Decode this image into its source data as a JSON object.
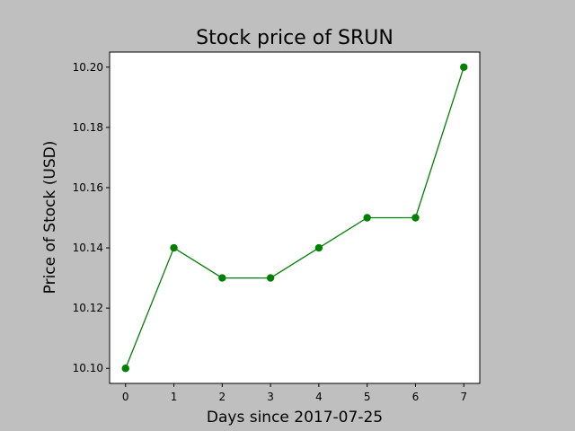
{
  "chart_data": {
    "type": "line",
    "title": "Stock price of SRUN",
    "xlabel": "Days since 2017-07-25",
    "ylabel": "Price of Stock (USD)",
    "x": [
      0,
      1,
      2,
      3,
      4,
      5,
      6,
      7
    ],
    "values": [
      10.1,
      10.14,
      10.13,
      10.13,
      10.14,
      10.15,
      10.15,
      10.2
    ],
    "xticks": [
      0,
      1,
      2,
      3,
      4,
      5,
      6,
      7
    ],
    "xtick_labels": [
      "0",
      "1",
      "2",
      "3",
      "4",
      "5",
      "6",
      "7"
    ],
    "yticks": [
      10.1,
      10.12,
      10.14,
      10.16,
      10.18,
      10.2
    ],
    "ytick_labels": [
      "10.10",
      "10.12",
      "10.14",
      "10.16",
      "10.18",
      "10.20"
    ],
    "xlim": [
      -0.33,
      7.33
    ],
    "ylim": [
      10.095,
      10.205
    ],
    "grid": false,
    "line_color": "#008000",
    "marker": "circle",
    "figure_background": "#bfbfbf",
    "plot_background": "#ffffff"
  }
}
